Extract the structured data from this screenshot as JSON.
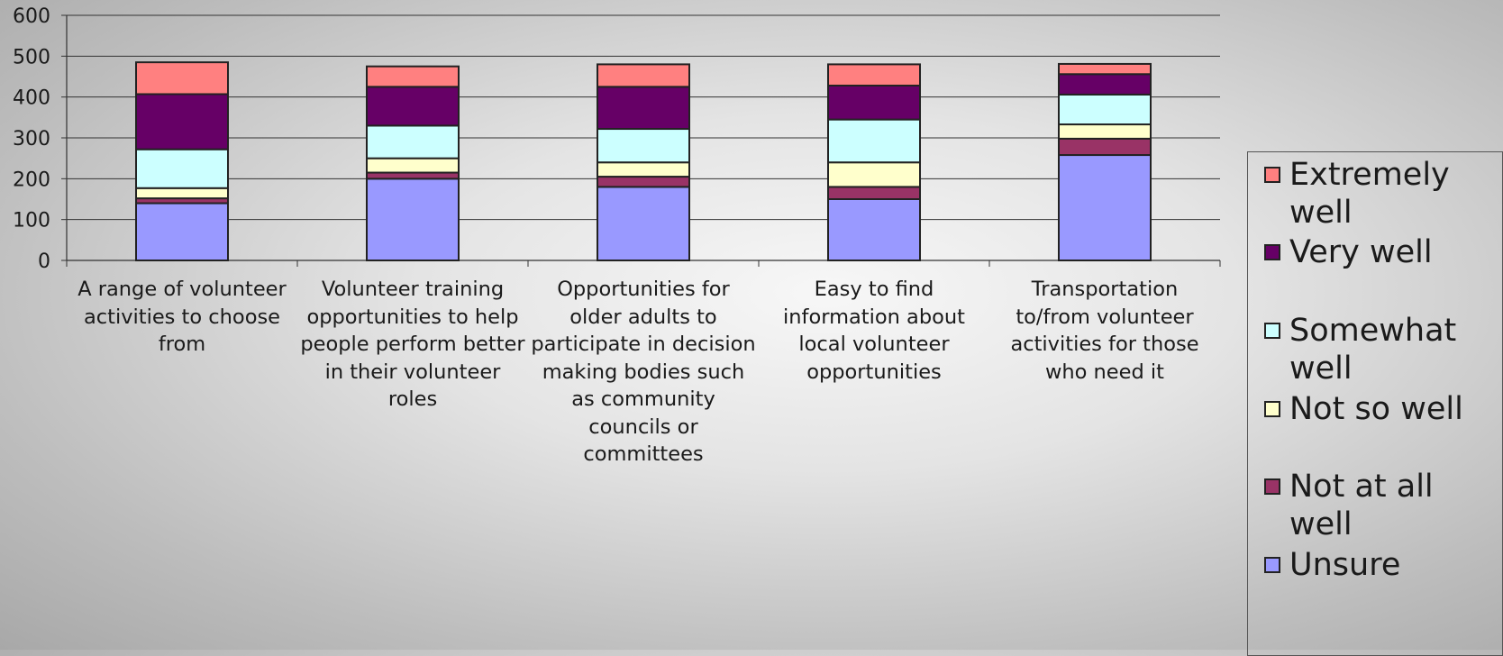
{
  "chart_data": {
    "type": "bar",
    "stacked": true,
    "categories": [
      "A range of volunteer activities to choose from",
      "Volunteer training opportunities to help people perform better in their volunteer roles",
      "Opportunities for older adults to participate in decision making bodies such as community councils or committees",
      "Easy to find information about local volunteer opportunities",
      "Transportation to/from volunteer activities for those who need it"
    ],
    "series": [
      {
        "name": "Unsure",
        "color": "#9999ff",
        "values": [
          140,
          200,
          180,
          150,
          258
        ]
      },
      {
        "name": "Not at all well",
        "color": "#993366",
        "values": [
          12,
          15,
          25,
          30,
          40
        ]
      },
      {
        "name": "Not so well",
        "color": "#ffffcc",
        "values": [
          25,
          35,
          35,
          60,
          35
        ]
      },
      {
        "name": "Somewhat well",
        "color": "#ccffff",
        "values": [
          95,
          80,
          82,
          105,
          73
        ]
      },
      {
        "name": "Very well",
        "color": "#660066",
        "values": [
          135,
          95,
          103,
          83,
          50
        ]
      },
      {
        "name": "Extremely well",
        "color": "#ff8080",
        "values": [
          78,
          50,
          55,
          52,
          25
        ]
      }
    ],
    "yticks": [
      "0",
      "100",
      "200",
      "300",
      "400",
      "500",
      "600"
    ],
    "ylim": [
      0,
      600
    ],
    "grid": true,
    "legend_position": "right"
  }
}
